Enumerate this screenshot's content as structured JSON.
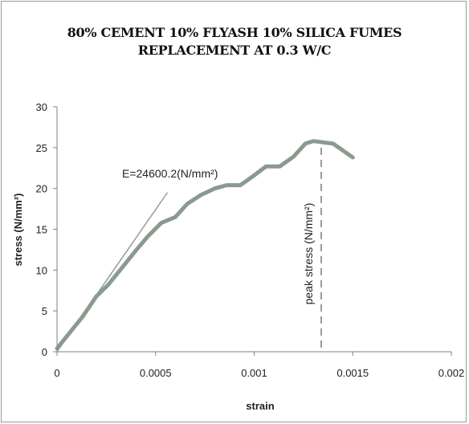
{
  "chart_data": {
    "type": "line",
    "title_lines": [
      "80% CEMENT 10% FLYASH 10% SILICA FUMES",
      "REPLACEMENT AT 0.3 W/C"
    ],
    "xlabel": "strain",
    "ylabel": "stress (N/mm²)",
    "xlim": [
      0,
      0.002
    ],
    "ylim": [
      0,
      30
    ],
    "x_ticks": [
      0,
      0.0005,
      0.001,
      0.0015,
      0.002
    ],
    "x_tick_labels": [
      "0",
      "0.0005",
      "0.001",
      "0.0015",
      "0.002"
    ],
    "y_ticks": [
      0,
      5,
      10,
      15,
      20,
      25,
      30
    ],
    "y_tick_labels": [
      "0",
      "5",
      "10",
      "15",
      "20",
      "25",
      "30"
    ],
    "grid": false,
    "series": [
      {
        "color": "#8a9a8e",
        "x": [
          0,
          7e-05,
          0.00013,
          0.0002,
          0.00026,
          0.00033,
          0.0004,
          0.00046,
          0.00053,
          0.0006,
          0.00066,
          0.00073,
          0.0008,
          0.00086,
          0.00093,
          0.001,
          0.00106,
          0.00113,
          0.0012,
          0.00126,
          0.0013,
          0.0014,
          0.0015
        ],
        "y": [
          0.4,
          2.5,
          4.3,
          6.8,
          8.2,
          10.3,
          12.4,
          14.1,
          15.8,
          16.5,
          18.1,
          19.2,
          20.0,
          20.4,
          20.4,
          21.6,
          22.7,
          22.7,
          23.9,
          25.5,
          25.8,
          25.5,
          23.8
        ]
      }
    ],
    "annotations": [
      {
        "text": "E=24600.2(N/mm²)",
        "line": {
          "x": [
            0,
            0.00056
          ],
          "y": [
            0,
            19.5
          ]
        }
      },
      {
        "text": "peak stress (N/mm²)",
        "line": {
          "x": [
            0.00134,
            0.00134
          ],
          "y": [
            0.5,
            25.7
          ]
        }
      }
    ]
  }
}
